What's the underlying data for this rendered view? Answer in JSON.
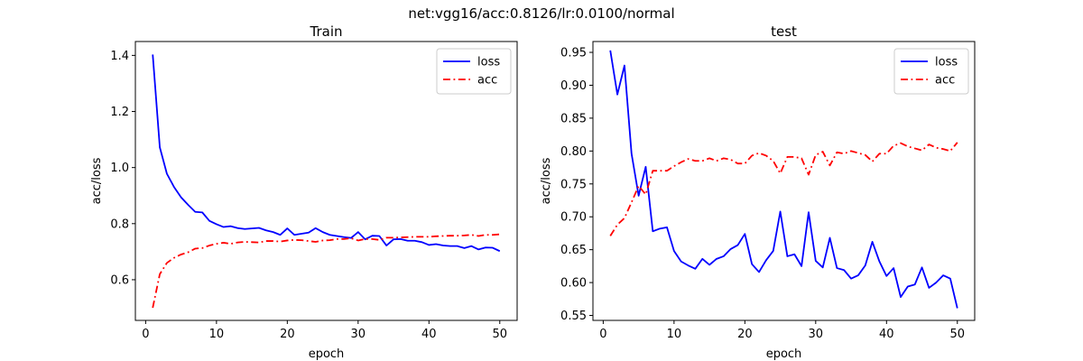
{
  "figure": {
    "suptitle": "net:vgg16/acc:0.8126/lr:0.0100/normal"
  },
  "chart_data": [
    {
      "type": "line",
      "title": "Train",
      "xlabel": "epoch",
      "ylabel": "acc/loss",
      "xlim": [
        -1.45,
        52.45
      ],
      "ylim": [
        0.455,
        1.4495
      ],
      "xticks": [
        0,
        10,
        20,
        30,
        40,
        50
      ],
      "yticks": [
        0.6,
        0.8,
        1.0,
        1.2,
        1.4
      ],
      "ytick_labels": [
        "0.6",
        "0.8",
        "1.0",
        "1.2",
        "1.4"
      ],
      "grid": false,
      "legend": "top-right",
      "x": [
        1,
        2,
        3,
        4,
        5,
        6,
        7,
        8,
        9,
        10,
        11,
        12,
        13,
        14,
        15,
        16,
        17,
        18,
        19,
        20,
        21,
        22,
        23,
        24,
        25,
        26,
        27,
        28,
        29,
        30,
        31,
        32,
        33,
        34,
        35,
        36,
        37,
        38,
        39,
        40,
        41,
        42,
        43,
        44,
        45,
        46,
        47,
        48,
        49,
        50
      ],
      "series": [
        {
          "name": "loss",
          "color": "#0000ff",
          "style": "solid",
          "values": [
            1.403,
            1.072,
            0.978,
            0.931,
            0.894,
            0.867,
            0.842,
            0.84,
            0.81,
            0.798,
            0.788,
            0.791,
            0.784,
            0.781,
            0.783,
            0.785,
            0.776,
            0.77,
            0.76,
            0.783,
            0.76,
            0.764,
            0.768,
            0.784,
            0.77,
            0.76,
            0.756,
            0.752,
            0.749,
            0.77,
            0.744,
            0.757,
            0.756,
            0.722,
            0.744,
            0.745,
            0.739,
            0.739,
            0.734,
            0.724,
            0.727,
            0.722,
            0.72,
            0.72,
            0.713,
            0.72,
            0.708,
            0.715,
            0.714,
            0.702
          ]
        },
        {
          "name": "acc",
          "color": "#ff0000",
          "style": "dashdot",
          "values": [
            0.5,
            0.62,
            0.66,
            0.678,
            0.69,
            0.698,
            0.711,
            0.713,
            0.722,
            0.728,
            0.732,
            0.728,
            0.733,
            0.735,
            0.734,
            0.733,
            0.738,
            0.738,
            0.736,
            0.74,
            0.742,
            0.741,
            0.738,
            0.735,
            0.74,
            0.741,
            0.745,
            0.745,
            0.748,
            0.74,
            0.745,
            0.745,
            0.742,
            0.75,
            0.75,
            0.751,
            0.752,
            0.753,
            0.753,
            0.753,
            0.755,
            0.756,
            0.757,
            0.757,
            0.758,
            0.76,
            0.756,
            0.76,
            0.76,
            0.762
          ]
        }
      ]
    },
    {
      "type": "line",
      "title": "test",
      "xlabel": "epoch",
      "ylabel": "acc/loss",
      "xlim": [
        -1.45,
        52.45
      ],
      "ylim": [
        0.5425,
        0.9665
      ],
      "xticks": [
        0,
        10,
        20,
        30,
        40,
        50
      ],
      "yticks": [
        0.55,
        0.6,
        0.65,
        0.7,
        0.75,
        0.8,
        0.85,
        0.9,
        0.95
      ],
      "ytick_labels": [
        "0.55",
        "0.60",
        "0.65",
        "0.70",
        "0.75",
        "0.80",
        "0.85",
        "0.90",
        "0.95"
      ],
      "grid": false,
      "legend": "top-right",
      "x": [
        1,
        2,
        3,
        4,
        5,
        6,
        7,
        8,
        9,
        10,
        11,
        12,
        13,
        14,
        15,
        16,
        17,
        18,
        19,
        20,
        21,
        22,
        23,
        24,
        25,
        26,
        27,
        28,
        29,
        30,
        31,
        32,
        33,
        34,
        35,
        36,
        37,
        38,
        39,
        40,
        41,
        42,
        43,
        44,
        45,
        46,
        47,
        48,
        49,
        50
      ],
      "series": [
        {
          "name": "loss",
          "color": "#0000ff",
          "style": "solid",
          "values": [
            0.953,
            0.886,
            0.93,
            0.796,
            0.732,
            0.776,
            0.678,
            0.682,
            0.684,
            0.648,
            0.632,
            0.626,
            0.621,
            0.636,
            0.627,
            0.636,
            0.64,
            0.651,
            0.657,
            0.674,
            0.628,
            0.616,
            0.634,
            0.648,
            0.708,
            0.64,
            0.643,
            0.625,
            0.707,
            0.633,
            0.623,
            0.668,
            0.622,
            0.619,
            0.606,
            0.611,
            0.626,
            0.662,
            0.632,
            0.61,
            0.622,
            0.578,
            0.594,
            0.597,
            0.623,
            0.592,
            0.6,
            0.611,
            0.606,
            0.561
          ]
        },
        {
          "name": "acc",
          "color": "#ff0000",
          "style": "dashdot",
          "values": [
            0.671,
            0.688,
            0.698,
            0.722,
            0.747,
            0.734,
            0.77,
            0.77,
            0.77,
            0.777,
            0.783,
            0.788,
            0.785,
            0.785,
            0.789,
            0.785,
            0.789,
            0.787,
            0.781,
            0.781,
            0.793,
            0.797,
            0.793,
            0.785,
            0.766,
            0.791,
            0.791,
            0.789,
            0.764,
            0.794,
            0.799,
            0.778,
            0.798,
            0.796,
            0.8,
            0.797,
            0.794,
            0.784,
            0.796,
            0.796,
            0.808,
            0.812,
            0.807,
            0.804,
            0.801,
            0.81,
            0.805,
            0.803,
            0.8,
            0.813
          ]
        }
      ]
    }
  ]
}
